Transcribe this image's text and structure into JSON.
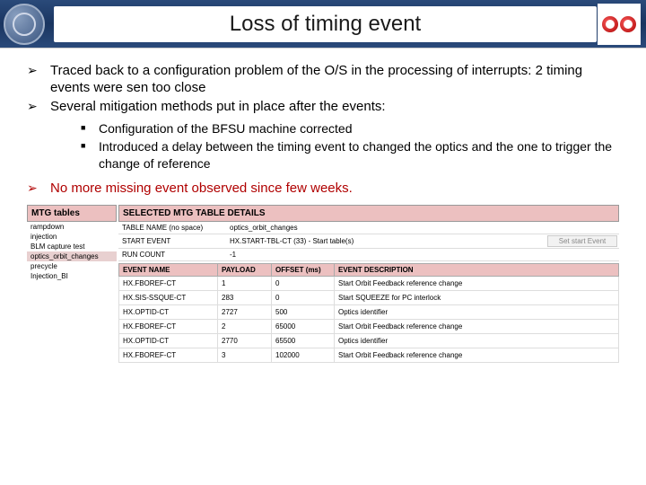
{
  "header": {
    "title": "Loss of timing event"
  },
  "bullets": {
    "b1": "Traced back to a configuration problem of the O/S in the processing of interrupts: 2 timing events were sen too close",
    "b2": "Several mitigation methods put in place after the events:",
    "sub1": "Configuration of the BFSU machine corrected",
    "sub2": "Introduced a delay between the timing event to changed the optics and the one to trigger the change of reference",
    "b3": "No more missing event observed since few weeks."
  },
  "mtg": {
    "header": "MTG tables",
    "items": [
      "rampdown",
      "injection",
      "BLM capture test",
      "optics_orbit_changes",
      "precycle",
      "Injection_BI"
    ],
    "selected_index": 3
  },
  "details": {
    "header": "SELECTED MTG TABLE DETAILS",
    "kv": [
      {
        "key": "TABLE NAME (no space)",
        "val": "optics_orbit_changes",
        "btn": ""
      },
      {
        "key": "START EVENT",
        "val": "HX.START-TBL-CT (33) - Start table(s)",
        "btn": "Set start Event"
      },
      {
        "key": "RUN COUNT",
        "val": "-1",
        "btn": ""
      }
    ],
    "columns": [
      "EVENT NAME",
      "PAYLOAD",
      "OFFSET (ms)",
      "EVENT DESCRIPTION"
    ],
    "rows": [
      [
        "HX.FBOREF-CT",
        "1",
        "0",
        "Start Orbit Feedback reference change"
      ],
      [
        "HX.SIS-SSQUE-CT",
        "283",
        "0",
        "Start SQUEEZE for PC interlock"
      ],
      [
        "HX.OPTID-CT",
        "2727",
        "500",
        "Optics identifier"
      ],
      [
        "HX.FBOREF-CT",
        "2",
        "65000",
        "Start Orbit Feedback reference change"
      ],
      [
        "HX.OPTID-CT",
        "2770",
        "65500",
        "Optics identifier"
      ],
      [
        "HX.FBOREF-CT",
        "3",
        "102000",
        "Start Orbit Feedback reference change"
      ]
    ]
  }
}
